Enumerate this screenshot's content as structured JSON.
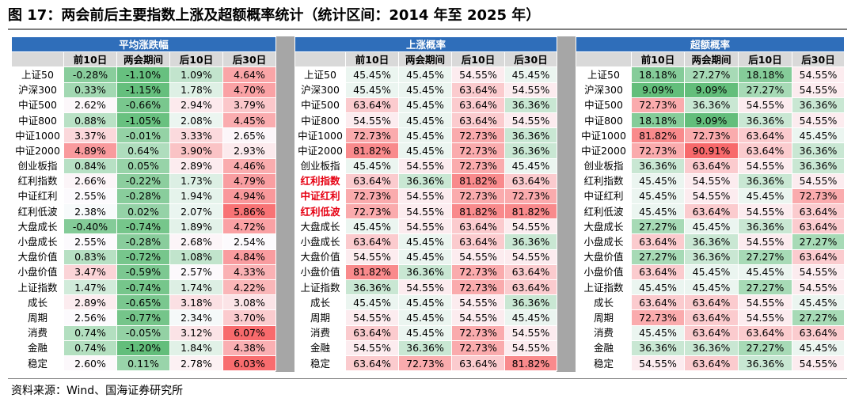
{
  "title": "图 17：两会前后主要指数上涨及超额概率统计（统计区间：2014 年至 2025 年）",
  "source": "资料来源：Wind、国海证券研究所",
  "colors": {
    "header_blue": "#2f6eba",
    "subheader_gray": "#d9d9d9",
    "highlight_red_text": "#e60012",
    "scale_green": "#63be7b",
    "scale_red": "#f8696b"
  },
  "columns": [
    "前10日",
    "两会期间",
    "后10日",
    "后30日"
  ],
  "rows": [
    "上证50",
    "沪深300",
    "中证500",
    "中证800",
    "中证1000",
    "中证2000",
    "创业板指",
    "红利指数",
    "中证红利",
    "红利低波",
    "大盘成长",
    "小盘成长",
    "大盘价值",
    "小盘价值",
    "上证指数",
    "成长",
    "周期",
    "消费",
    "金融",
    "稳定"
  ],
  "panels": [
    {
      "title": "平均涨跌幅",
      "kind": "return",
      "highlight_rows": [],
      "values": [
        [
          "-0.28%",
          "-1.10%",
          "1.09%",
          "4.64%"
        ],
        [
          "0.33%",
          "-1.15%",
          "1.78%",
          "4.70%"
        ],
        [
          "2.62%",
          "-0.66%",
          "2.94%",
          "3.79%"
        ],
        [
          "0.88%",
          "-1.05%",
          "2.08%",
          "4.45%"
        ],
        [
          "3.37%",
          "-0.01%",
          "3.33%",
          "2.65%"
        ],
        [
          "4.89%",
          "0.64%",
          "3.90%",
          "2.93%"
        ],
        [
          "0.84%",
          "0.05%",
          "2.89%",
          "4.46%"
        ],
        [
          "2.66%",
          "-0.22%",
          "1.73%",
          "4.79%"
        ],
        [
          "2.55%",
          "-0.28%",
          "1.94%",
          "4.94%"
        ],
        [
          "2.38%",
          "0.02%",
          "2.07%",
          "5.86%"
        ],
        [
          "-0.40%",
          "-0.74%",
          "1.89%",
          "4.72%"
        ],
        [
          "2.55%",
          "-0.28%",
          "2.68%",
          "2.54%"
        ],
        [
          "0.83%",
          "-0.72%",
          "1.08%",
          "4.84%"
        ],
        [
          "3.47%",
          "-0.59%",
          "2.57%",
          "4.33%"
        ],
        [
          "1.47%",
          "-0.74%",
          "1.74%",
          "4.22%"
        ],
        [
          "2.89%",
          "-0.65%",
          "3.18%",
          "3.08%"
        ],
        [
          "2.56%",
          "-0.77%",
          "2.34%",
          "3.70%"
        ],
        [
          "0.74%",
          "-0.05%",
          "3.12%",
          "6.07%"
        ],
        [
          "0.74%",
          "-1.20%",
          "1.84%",
          "4.38%"
        ],
        [
          "2.60%",
          "0.11%",
          "2.78%",
          "6.03%"
        ]
      ]
    },
    {
      "title": "上涨概率",
      "kind": "prob",
      "highlight_rows": [
        7,
        8,
        9
      ],
      "values": [
        [
          "45.45%",
          "45.45%",
          "54.55%",
          "45.45%"
        ],
        [
          "45.45%",
          "45.45%",
          "63.64%",
          "54.55%"
        ],
        [
          "63.64%",
          "45.45%",
          "63.64%",
          "36.36%"
        ],
        [
          "54.55%",
          "45.45%",
          "63.64%",
          "54.55%"
        ],
        [
          "72.73%",
          "45.45%",
          "72.73%",
          "36.36%"
        ],
        [
          "81.82%",
          "45.45%",
          "72.73%",
          "36.36%"
        ],
        [
          "45.45%",
          "54.55%",
          "72.73%",
          "45.45%"
        ],
        [
          "63.64%",
          "36.36%",
          "81.82%",
          "63.64%"
        ],
        [
          "72.73%",
          "54.55%",
          "72.73%",
          "72.73%"
        ],
        [
          "72.73%",
          "54.55%",
          "81.82%",
          "81.82%"
        ],
        [
          "45.45%",
          "54.55%",
          "63.64%",
          "54.55%"
        ],
        [
          "63.64%",
          "45.45%",
          "63.64%",
          "36.36%"
        ],
        [
          "54.55%",
          "45.45%",
          "54.55%",
          "54.55%"
        ],
        [
          "81.82%",
          "36.36%",
          "72.73%",
          "63.64%"
        ],
        [
          "36.36%",
          "54.55%",
          "72.73%",
          "63.64%"
        ],
        [
          "45.45%",
          "45.45%",
          "54.55%",
          "36.36%"
        ],
        [
          "54.55%",
          "45.45%",
          "54.55%",
          "45.45%"
        ],
        [
          "63.64%",
          "45.45%",
          "72.73%",
          "54.55%"
        ],
        [
          "54.55%",
          "36.36%",
          "72.73%",
          "54.55%"
        ],
        [
          "63.64%",
          "72.73%",
          "63.64%",
          "81.82%"
        ]
      ]
    },
    {
      "title": "超额概率",
      "kind": "prob",
      "highlight_rows": [],
      "values": [
        [
          "18.18%",
          "27.27%",
          "18.18%",
          "54.55%"
        ],
        [
          "9.09%",
          "9.09%",
          "27.27%",
          "54.55%"
        ],
        [
          "72.73%",
          "36.36%",
          "54.55%",
          "36.36%"
        ],
        [
          "18.18%",
          "9.09%",
          "36.36%",
          "54.55%"
        ],
        [
          "81.82%",
          "72.73%",
          "63.64%",
          "45.45%"
        ],
        [
          "72.73%",
          "90.91%",
          "63.64%",
          "36.36%"
        ],
        [
          "36.36%",
          "63.64%",
          "54.55%",
          "36.36%"
        ],
        [
          "45.45%",
          "54.55%",
          "36.36%",
          "54.55%"
        ],
        [
          "45.45%",
          "54.55%",
          "45.45%",
          "72.73%"
        ],
        [
          "45.45%",
          "63.64%",
          "54.55%",
          "63.64%"
        ],
        [
          "27.27%",
          "45.45%",
          "36.36%",
          "63.64%"
        ],
        [
          "63.64%",
          "36.36%",
          "54.55%",
          "27.27%"
        ],
        [
          "27.27%",
          "36.36%",
          "27.27%",
          "63.64%"
        ],
        [
          "63.64%",
          "45.45%",
          "45.45%",
          "54.55%"
        ],
        [
          "45.45%",
          "45.45%",
          "27.27%",
          "54.55%"
        ],
        [
          "63.64%",
          "63.64%",
          "54.55%",
          "45.45%"
        ],
        [
          "72.73%",
          "63.64%",
          "54.55%",
          "27.27%"
        ],
        [
          "45.45%",
          "63.64%",
          "63.64%",
          "63.64%"
        ],
        [
          "36.36%",
          "36.36%",
          "27.27%",
          "45.45%"
        ],
        [
          "54.55%",
          "63.64%",
          "36.36%",
          "54.55%"
        ]
      ]
    }
  ]
}
